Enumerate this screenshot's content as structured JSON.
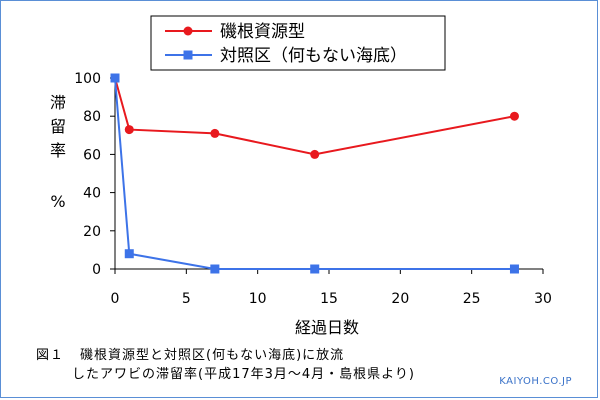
{
  "chart_data": {
    "type": "line",
    "title": "",
    "ylabel": "滞留率 %",
    "ylabel_chars": [
      "滞",
      "留",
      "率",
      "%"
    ],
    "xlabel": "経過日数",
    "xlim": [
      0,
      30
    ],
    "ylim": [
      0,
      100
    ],
    "xticks": [
      0,
      5,
      10,
      15,
      20,
      25,
      30
    ],
    "yticks": [
      0,
      20,
      40,
      60,
      80,
      100
    ],
    "grid": false,
    "legend_position": "top-center",
    "series": [
      {
        "name": "磯根資源型",
        "color": "#e8191e",
        "marker": "circle",
        "x": [
          0,
          1,
          7,
          14,
          28
        ],
        "y": [
          100,
          73,
          71,
          60,
          80
        ]
      },
      {
        "name": "対照区（何もない海底）",
        "color": "#3d73e8",
        "marker": "square",
        "x": [
          0,
          1,
          7,
          14,
          28
        ],
        "y": [
          100,
          8,
          0,
          0,
          0
        ]
      }
    ]
  },
  "caption": {
    "figure_label": "図１",
    "line1": "磯根資源型と対照区(何もない海底)に放流",
    "line2": "したアワビの滞留率(平成17年3月～4月・島根県より)"
  },
  "credit": "KAIYOH.CO.JP"
}
